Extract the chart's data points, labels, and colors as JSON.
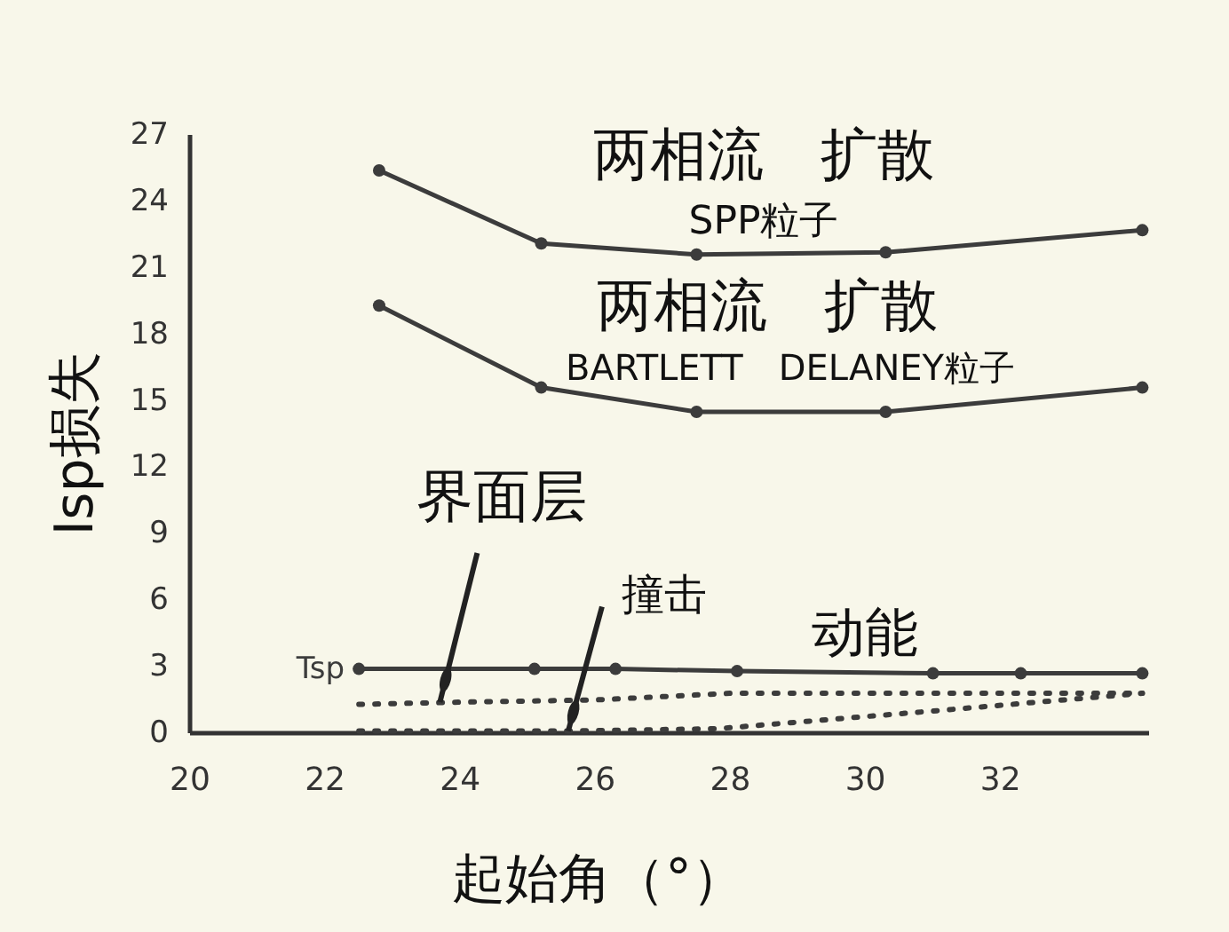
{
  "chart_data": {
    "type": "line",
    "xlabel": "起始角（°）",
    "ylabel": "Isp损失",
    "xlim": [
      20,
      34.2
    ],
    "xticks": [
      20,
      22,
      24,
      26,
      28,
      30,
      32
    ],
    "ylim": [
      0,
      27
    ],
    "yticks": [
      0,
      3,
      6,
      9,
      12,
      15,
      18,
      21,
      24,
      27
    ],
    "grid": false,
    "series": [
      {
        "color": "#3c3c3c",
        "marker": "circle",
        "line_style": "solid",
        "x": [
          22.8,
          25.2,
          27.5,
          30.3,
          34.1
        ],
        "values": [
          25.4,
          22.1,
          21.6,
          21.7,
          22.7
        ]
      },
      {
        "color": "#3c3c3c",
        "marker": "circle",
        "line_style": "solid",
        "x": [
          22.8,
          25.2,
          27.5,
          30.3,
          34.1
        ],
        "values": [
          19.3,
          15.6,
          14.5,
          14.5,
          15.6
        ]
      },
      {
        "name": "Tsp",
        "color": "#3c3c3c",
        "marker": "circle",
        "line_style": "solid",
        "x": [
          22.5,
          25.1,
          26.3,
          28.1,
          31.0,
          32.3,
          34.1
        ],
        "values": [
          2.9,
          2.9,
          2.9,
          2.8,
          2.7,
          2.7,
          2.7
        ]
      },
      {
        "color": "#3c3c3c",
        "marker": "none",
        "line_style": "dotted",
        "x": [
          22.5,
          24.0,
          26.0,
          28.0,
          31.0,
          34.1
        ],
        "values": [
          1.3,
          1.4,
          1.5,
          1.8,
          1.8,
          1.8
        ]
      },
      {
        "color": "#3c3c3c",
        "marker": "none",
        "line_style": "dotted",
        "x": [
          22.5,
          24.5,
          25.6,
          27.8,
          31.0,
          34.1
        ],
        "values": [
          0.1,
          0.1,
          0.1,
          0.2,
          1.0,
          1.8
        ]
      }
    ],
    "annotations": [
      "两相流　扩散",
      "SPP粒子",
      "两相流　扩散",
      "BARTLETT　DELANEY粒子",
      {
        "text": "界面层",
        "x": 23.7,
        "y": 1.4
      },
      {
        "text": "撞击",
        "x": 25.6,
        "y": 0.1
      },
      "动能"
    ]
  }
}
